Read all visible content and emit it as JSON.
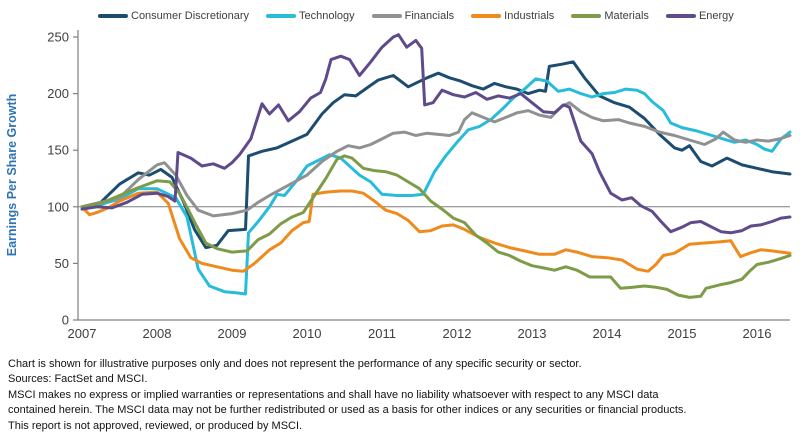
{
  "chart_data": {
    "type": "line",
    "title": "",
    "ylabel": "Earnings Per Share Growth",
    "xlabel": "",
    "ylim": [
      0,
      250
    ],
    "xlim": [
      2006.95,
      2016.6
    ],
    "baseline_value": 100,
    "y_ticks": [
      0,
      50,
      100,
      150,
      200,
      250
    ],
    "x_ticks": [
      2007,
      2008,
      2009,
      2010,
      2011,
      2012,
      2013,
      2014,
      2015,
      2016
    ],
    "grid": "single horizontal reference line at 100",
    "legend_position": "top",
    "axis_color": "#808080",
    "tick_text_color": "#404040",
    "ylabel_color": "#2e74b5",
    "series": [
      {
        "name": "Consumer Discretionary",
        "color": "#1c4d70",
        "x": [
          2007.0,
          2007.25,
          2007.5,
          2007.75,
          2007.9,
          2008.05,
          2008.2,
          2008.35,
          2008.5,
          2008.65,
          2008.8,
          2008.95,
          2009.18,
          2009.22,
          2009.4,
          2009.6,
          2009.8,
          2010.0,
          2010.2,
          2010.35,
          2010.5,
          2010.65,
          2010.8,
          2010.95,
          2011.15,
          2011.35,
          2011.6,
          2011.75,
          2011.9,
          2012.05,
          2012.2,
          2012.35,
          2012.5,
          2012.65,
          2012.8,
          2012.95,
          2013.1,
          2013.18,
          2013.23,
          2013.4,
          2013.55,
          2013.7,
          2013.9,
          2014.1,
          2014.3,
          2014.5,
          2014.7,
          2014.9,
          2015.0,
          2015.1,
          2015.25,
          2015.4,
          2015.6,
          2015.8,
          2016.0,
          2016.2,
          2016.44
        ],
        "y": [
          100,
          104,
          120,
          130,
          128,
          133,
          126,
          105,
          80,
          64,
          66,
          79,
          80,
          145,
          149,
          152,
          158,
          164,
          182,
          192,
          199,
          198,
          205,
          212,
          216,
          206,
          214,
          218,
          214,
          211,
          207,
          204,
          209,
          206,
          204,
          200,
          203,
          202,
          224,
          226,
          228,
          214,
          198,
          192,
          188,
          178,
          164,
          152,
          150,
          154,
          140,
          136,
          143,
          137,
          134,
          131,
          129
        ]
      },
      {
        "name": "Technology",
        "color": "#27bcd9",
        "x": [
          2007.0,
          2007.25,
          2007.5,
          2007.75,
          2008.0,
          2008.25,
          2008.4,
          2008.55,
          2008.7,
          2008.9,
          2009.05,
          2009.18,
          2009.22,
          2009.35,
          2009.5,
          2009.6,
          2009.7,
          2009.85,
          2010.0,
          2010.15,
          2010.3,
          2010.45,
          2010.6,
          2010.7,
          2010.85,
          2011.0,
          2011.2,
          2011.4,
          2011.55,
          2011.7,
          2011.85,
          2012.0,
          2012.15,
          2012.3,
          2012.45,
          2012.6,
          2012.75,
          2012.9,
          2013.05,
          2013.2,
          2013.35,
          2013.5,
          2013.65,
          2013.8,
          2013.95,
          2014.1,
          2014.25,
          2014.4,
          2014.5,
          2014.6,
          2014.75,
          2014.85,
          2015.0,
          2015.2,
          2015.4,
          2015.55,
          2015.7,
          2015.85,
          2016.0,
          2016.1,
          2016.2,
          2016.32,
          2016.44
        ],
        "y": [
          100,
          102,
          107,
          116,
          116,
          108,
          91,
          45,
          30,
          25,
          24,
          23,
          77,
          87,
          100,
          111,
          110,
          122,
          136,
          141,
          146,
          143,
          134,
          128,
          122,
          111,
          110,
          110,
          111,
          131,
          145,
          157,
          168,
          171,
          177,
          186,
          196,
          204,
          213,
          211,
          202,
          204,
          200,
          197,
          200,
          201,
          204,
          203,
          200,
          193,
          185,
          174,
          170,
          167,
          163,
          160,
          157,
          159,
          155,
          151,
          149,
          160,
          166
        ]
      },
      {
        "name": "Financials",
        "color": "#8f9193",
        "x": [
          2007.0,
          2007.25,
          2007.5,
          2007.75,
          2008.0,
          2008.1,
          2008.25,
          2008.4,
          2008.55,
          2008.75,
          2009.0,
          2009.2,
          2009.35,
          2009.5,
          2009.75,
          2010.0,
          2010.2,
          2010.4,
          2010.55,
          2010.7,
          2010.85,
          2011.0,
          2011.15,
          2011.3,
          2011.45,
          2011.6,
          2011.75,
          2011.9,
          2012.02,
          2012.1,
          2012.2,
          2012.35,
          2012.5,
          2012.65,
          2012.8,
          2012.95,
          2013.1,
          2013.25,
          2013.4,
          2013.5,
          2013.65,
          2013.8,
          2013.95,
          2014.15,
          2014.3,
          2014.5,
          2014.7,
          2014.9,
          2015.1,
          2015.3,
          2015.45,
          2015.55,
          2015.7,
          2015.85,
          2016.0,
          2016.15,
          2016.3,
          2016.44
        ],
        "y": [
          100,
          104,
          108,
          124,
          137,
          139,
          128,
          110,
          97,
          92,
          94,
          97,
          104,
          110,
          119,
          128,
          140,
          149,
          154,
          152,
          155,
          160,
          165,
          166,
          163,
          165,
          164,
          163,
          166,
          177,
          183,
          179,
          175,
          179,
          183,
          185,
          181,
          179,
          189,
          192,
          184,
          179,
          176,
          177,
          174,
          171,
          166,
          163,
          159,
          155,
          160,
          166,
          159,
          157,
          159,
          158,
          160,
          163
        ]
      },
      {
        "name": "Industrials",
        "color": "#ef8a1d",
        "x": [
          2007.0,
          2007.1,
          2007.2,
          2007.35,
          2007.5,
          2007.75,
          2008.0,
          2008.15,
          2008.3,
          2008.45,
          2008.6,
          2008.8,
          2009.0,
          2009.15,
          2009.3,
          2009.5,
          2009.65,
          2009.8,
          2009.95,
          2010.03,
          2010.08,
          2010.25,
          2010.45,
          2010.6,
          2010.75,
          2010.9,
          2011.05,
          2011.2,
          2011.35,
          2011.5,
          2011.65,
          2011.8,
          2011.95,
          2012.1,
          2012.3,
          2012.5,
          2012.7,
          2012.9,
          2013.1,
          2013.3,
          2013.45,
          2013.6,
          2013.8,
          2014.0,
          2014.2,
          2014.4,
          2014.55,
          2014.65,
          2014.75,
          2014.9,
          2015.1,
          2015.3,
          2015.5,
          2015.65,
          2015.78,
          2015.9,
          2016.05,
          2016.2,
          2016.32,
          2016.44
        ],
        "y": [
          100,
          93,
          95,
          99,
          105,
          112,
          113,
          103,
          72,
          55,
          50,
          47,
          44,
          43,
          50,
          62,
          68,
          79,
          86,
          87,
          111,
          113,
          114,
          114,
          112,
          105,
          97,
          94,
          88,
          78,
          79,
          83,
          84,
          80,
          73,
          68,
          64,
          61,
          58,
          58,
          62,
          60,
          56,
          55,
          53,
          45,
          43,
          49,
          57,
          59,
          67,
          68,
          69,
          70,
          56,
          59,
          62,
          61,
          60,
          59
        ]
      },
      {
        "name": "Materials",
        "color": "#7e9c47",
        "x": [
          2007.0,
          2007.25,
          2007.5,
          2007.75,
          2008.0,
          2008.17,
          2008.3,
          2008.42,
          2008.52,
          2008.65,
          2008.8,
          2009.0,
          2009.2,
          2009.35,
          2009.5,
          2009.65,
          2009.8,
          2009.95,
          2010.1,
          2010.25,
          2010.4,
          2010.5,
          2010.6,
          2010.75,
          2010.9,
          2011.05,
          2011.2,
          2011.35,
          2011.5,
          2011.65,
          2011.8,
          2011.95,
          2012.1,
          2012.25,
          2012.4,
          2012.55,
          2012.7,
          2012.85,
          2013.0,
          2013.15,
          2013.3,
          2013.45,
          2013.6,
          2013.77,
          2013.9,
          2014.05,
          2014.18,
          2014.35,
          2014.5,
          2014.65,
          2014.8,
          2014.95,
          2015.1,
          2015.25,
          2015.32,
          2015.5,
          2015.65,
          2015.8,
          2015.9,
          2016.0,
          2016.15,
          2016.3,
          2016.44
        ],
        "y": [
          100,
          103,
          110,
          117,
          123,
          122,
          112,
          97,
          84,
          68,
          63,
          60,
          61,
          71,
          76,
          85,
          91,
          95,
          110,
          125,
          142,
          145,
          143,
          134,
          132,
          131,
          128,
          122,
          116,
          105,
          98,
          90,
          86,
          75,
          68,
          60,
          57,
          52,
          48,
          46,
          44,
          47,
          44,
          38,
          38,
          38,
          28,
          29,
          30,
          29,
          27,
          22,
          20,
          21,
          28,
          31,
          33,
          36,
          43,
          49,
          51,
          54,
          57
        ]
      },
      {
        "name": "Energy",
        "color": "#5f4b8b",
        "x": [
          2007.0,
          2007.2,
          2007.4,
          2007.6,
          2007.8,
          2008.0,
          2008.15,
          2008.24,
          2008.28,
          2008.45,
          2008.6,
          2008.75,
          2008.9,
          2009.0,
          2009.1,
          2009.25,
          2009.4,
          2009.5,
          2009.62,
          2009.75,
          2009.9,
          2010.05,
          2010.18,
          2010.25,
          2010.32,
          2010.45,
          2010.57,
          2010.7,
          2010.85,
          2011.0,
          2011.15,
          2011.22,
          2011.33,
          2011.45,
          2011.53,
          2011.57,
          2011.68,
          2011.8,
          2011.95,
          2012.1,
          2012.25,
          2012.4,
          2012.55,
          2012.7,
          2012.85,
          2013.0,
          2013.15,
          2013.3,
          2013.42,
          2013.5,
          2013.65,
          2013.8,
          2013.9,
          2014.05,
          2014.2,
          2014.33,
          2014.45,
          2014.6,
          2014.72,
          2014.85,
          2015.0,
          2015.12,
          2015.25,
          2015.4,
          2015.52,
          2015.65,
          2015.8,
          2015.92,
          2016.05,
          2016.2,
          2016.32,
          2016.44
        ],
        "y": [
          98,
          100,
          99,
          104,
          111,
          112,
          109,
          105,
          148,
          143,
          136,
          138,
          134,
          139,
          146,
          160,
          191,
          182,
          190,
          176,
          184,
          196,
          201,
          213,
          230,
          233,
          230,
          216,
          228,
          241,
          250,
          252,
          241,
          247,
          240,
          190,
          192,
          203,
          199,
          197,
          201,
          195,
          198,
          196,
          200,
          192,
          184,
          183,
          190,
          188,
          158,
          147,
          131,
          112,
          106,
          108,
          101,
          96,
          87,
          78,
          82,
          86,
          87,
          82,
          78,
          77,
          79,
          83,
          84,
          87,
          90,
          91
        ]
      }
    ]
  },
  "footnotes": {
    "lines": [
      "Chart is shown for illustrative purposes only and does not represent the performance of any specific security or sector.",
      "Sources: FactSet and MSCI.",
      "MSCI makes no express or implied warranties or representations and shall have no liability whatsoever with respect to any MSCI data",
      "contained herein. The MSCI data may not be further redistributed or used as a basis for other indices or any securities or financial products.",
      "This report is not approved, reviewed, or produced by MSCI."
    ]
  }
}
